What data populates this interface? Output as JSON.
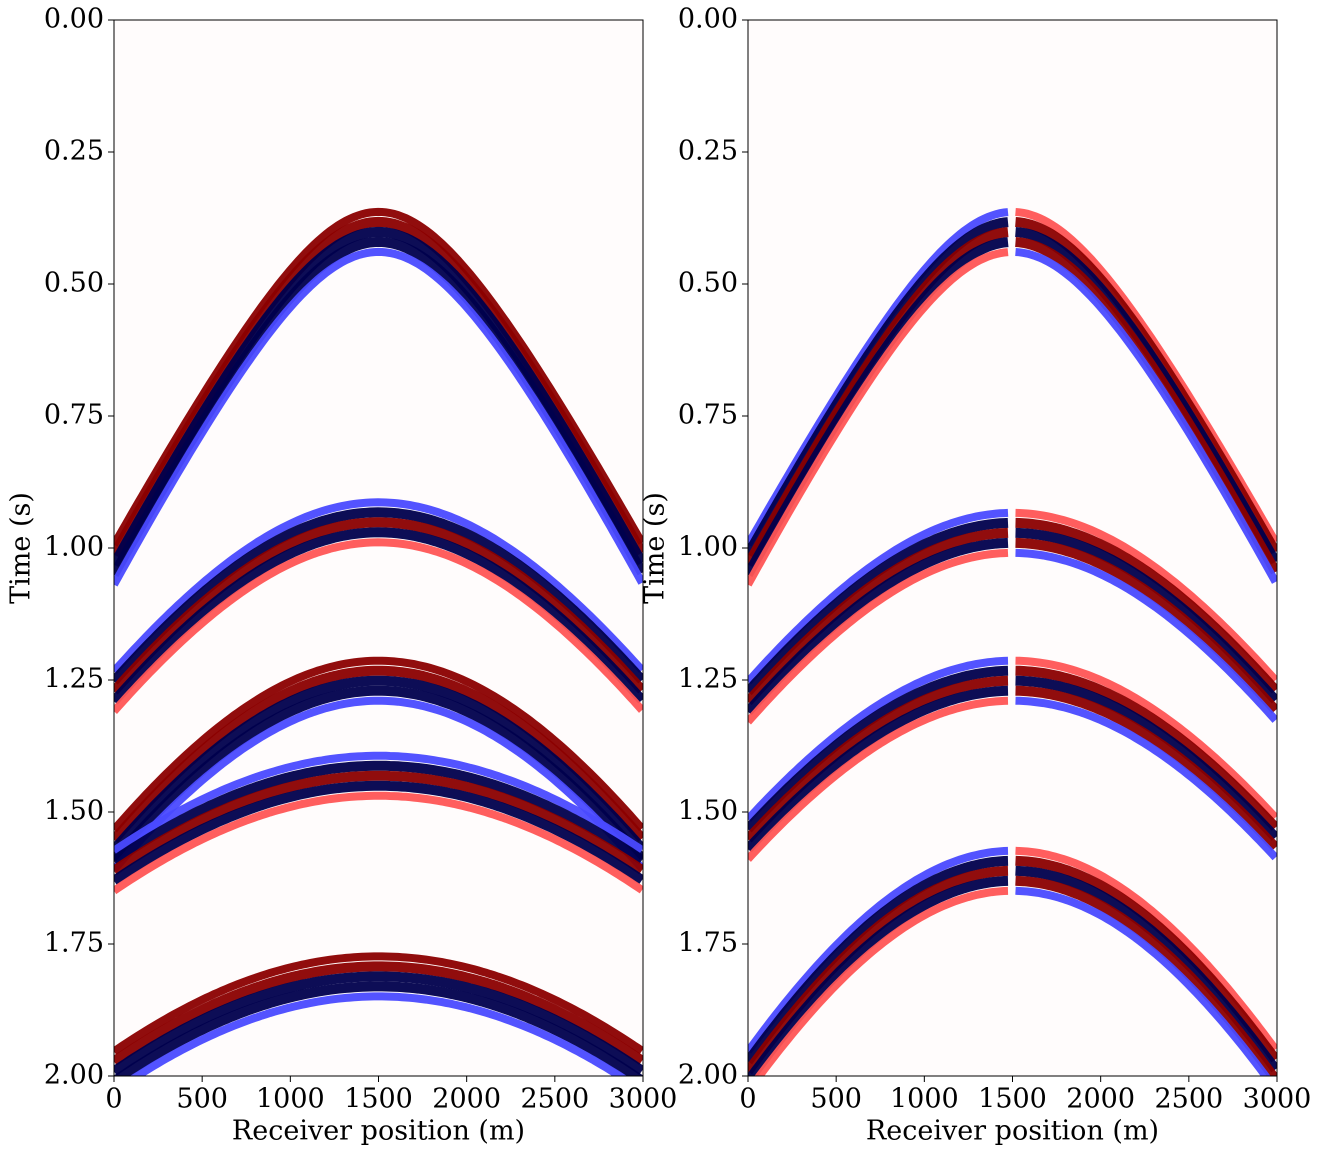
{
  "chart_data": [
    {
      "type": "image",
      "xlabel": "Receiver position (m)",
      "ylabel": "Time (s)",
      "xlim": [
        0,
        3000
      ],
      "ylim": [
        2,
        0
      ],
      "xticks": [
        0,
        500,
        1000,
        1500,
        2000,
        2500,
        3000
      ],
      "yticks": [
        {
          "value": 0,
          "label": "0.00"
        },
        {
          "value": 0.25,
          "label": "0.25"
        },
        {
          "value": 0.5,
          "label": "0.50"
        },
        {
          "value": 0.75,
          "label": "0.75"
        },
        {
          "value": 1,
          "label": "1.00"
        },
        {
          "value": 1.25,
          "label": "1.25"
        },
        {
          "value": 1.5,
          "label": "1.50"
        },
        {
          "value": 1.75,
          "label": "1.75"
        },
        {
          "value": 2,
          "label": "2.00"
        }
      ]
    },
    {
      "type": "image",
      "xlabel": "Receiver position (m)",
      "ylabel": "Time (s)",
      "xlim": [
        0,
        3000
      ],
      "ylim": [
        2,
        0
      ],
      "xticks": [
        0,
        500,
        1000,
        1500,
        2000,
        2500,
        3000
      ],
      "yticks": [
        {
          "value": 0,
          "label": "0.00"
        },
        {
          "value": 0.25,
          "label": "0.25"
        },
        {
          "value": 0.5,
          "label": "0.50"
        },
        {
          "value": 0.75,
          "label": "0.75"
        },
        {
          "value": 1,
          "label": "1.00"
        },
        {
          "value": 1.25,
          "label": "1.25"
        },
        {
          "value": 1.5,
          "label": "1.50"
        },
        {
          "value": 1.75,
          "label": "1.75"
        },
        {
          "value": 2,
          "label": "2.00"
        }
      ]
    }
  ]
}
